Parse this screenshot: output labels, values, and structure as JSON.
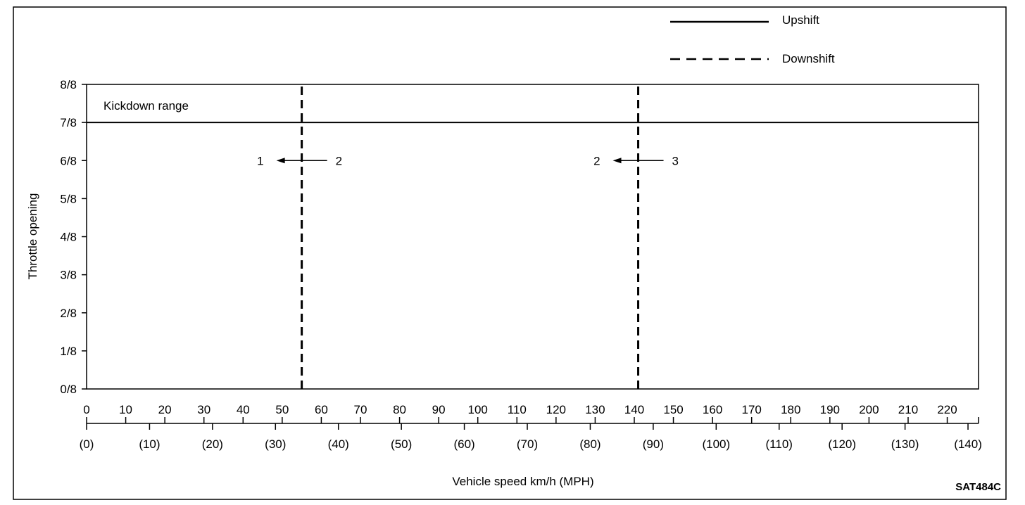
{
  "chart_data": {
    "type": "line",
    "title": "",
    "ylabel": "Throttle opening",
    "xlabel": "Vehicle speed km/h (MPH)",
    "ylim": [
      0,
      8
    ],
    "xlim": [
      0,
      228
    ],
    "yticks": [
      "0/8",
      "1/8",
      "2/8",
      "3/8",
      "4/8",
      "5/8",
      "6/8",
      "7/8",
      "8/8"
    ],
    "xticks_kmh": [
      "0",
      "10",
      "20",
      "30",
      "40",
      "50",
      "60",
      "70",
      "80",
      "90",
      "100",
      "110",
      "120",
      "130",
      "140",
      "150",
      "160",
      "170",
      "180",
      "190",
      "200",
      "210",
      "220"
    ],
    "xticks_mph": [
      "(0)",
      "(10)",
      "(20)",
      "(30)",
      "(40)",
      "(50)",
      "(60)",
      "(70)",
      "(80)",
      "(90)",
      "(100)",
      "(110)",
      "(120)",
      "(130)",
      "(140)"
    ],
    "legend": [
      {
        "name": "Upshift",
        "style": "solid"
      },
      {
        "name": "Downshift",
        "style": "dashed"
      }
    ],
    "legend_position": "top-right",
    "grid": false,
    "series": [
      {
        "name": "Downshift",
        "style": "dashed",
        "points": [
          [
            55,
            0
          ],
          [
            55,
            8
          ]
        ]
      },
      {
        "name": "Downshift",
        "style": "dashed",
        "points": [
          [
            141,
            0
          ],
          [
            141,
            8
          ]
        ]
      }
    ],
    "kickdown_boundary": 7,
    "annotations": [
      {
        "text": "Kickdown range"
      },
      {
        "from": "2",
        "to": "1",
        "speed": 55,
        "throttle": 6
      },
      {
        "from": "3",
        "to": "2",
        "speed": 141,
        "throttle": 6
      }
    ],
    "figure_code": "SAT484C"
  }
}
